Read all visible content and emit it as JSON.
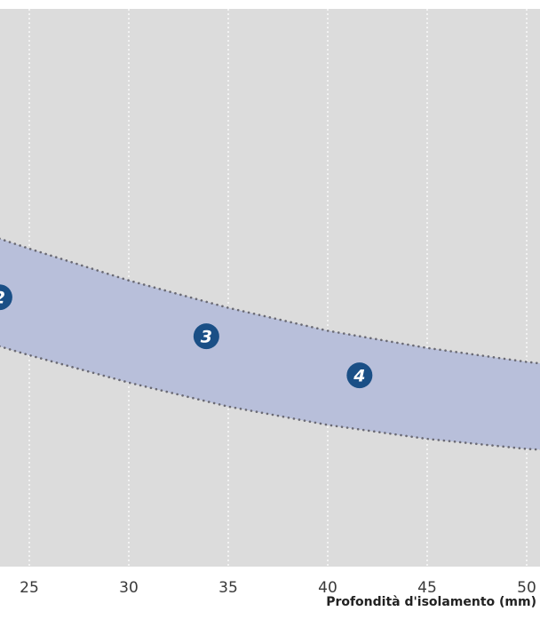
{
  "chart_data": {
    "type": "area",
    "title": "",
    "xlabel": "Profondità d'isolamento (mm)",
    "ylabel": "",
    "xlim": [
      23.5,
      51
    ],
    "x_ticks": [
      25,
      30,
      35,
      40,
      45,
      50
    ],
    "x_tick_labels": [
      "25",
      "30",
      "35",
      "40",
      "45",
      "50"
    ],
    "grid": true,
    "series": [
      {
        "role": "upper-boundary",
        "x": [
          23.5,
          25,
          30,
          35,
          40,
          45,
          50,
          51
        ],
        "values": [
          0.588,
          0.57,
          0.513,
          0.464,
          0.423,
          0.392,
          0.367,
          0.363
        ]
      },
      {
        "role": "lower-boundary",
        "x": [
          23.5,
          25,
          30,
          35,
          40,
          45,
          50,
          51
        ],
        "values": [
          0.395,
          0.379,
          0.33,
          0.287,
          0.254,
          0.229,
          0.211,
          0.209
        ]
      }
    ],
    "markers": [
      {
        "label": "2",
        "x": 23.5,
        "y": 0.483
      },
      {
        "label": "3",
        "x": 33.9,
        "y": 0.413
      },
      {
        "label": "4",
        "x": 41.6,
        "y": 0.343
      }
    ],
    "colors": {
      "plot_background": "#dcdcdc",
      "band_fill": "#b8bfda",
      "boundary_line": "#6a6a74",
      "marker_fill": "#1a4f86",
      "gridline": "#ffffff"
    }
  }
}
